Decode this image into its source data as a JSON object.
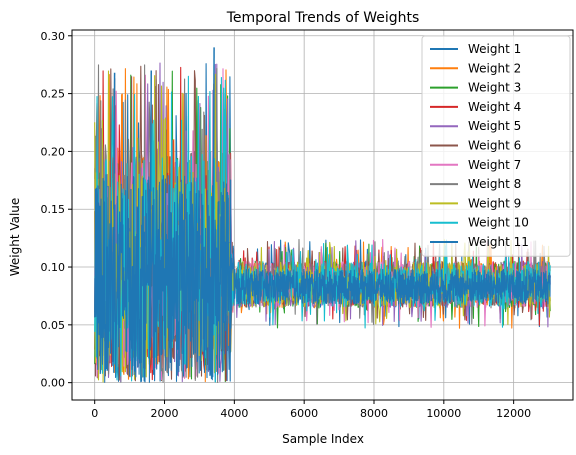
{
  "chart_data": {
    "type": "line",
    "title": "Temporal Trends of Weights",
    "xlabel": "Sample Index",
    "ylabel": "Weight Value",
    "xlim": [
      -650,
      13700
    ],
    "ylim": [
      -0.015,
      0.305
    ],
    "xticks": [
      0,
      2000,
      4000,
      6000,
      8000,
      10000,
      12000
    ],
    "xtick_labels": [
      "0",
      "2000",
      "4000",
      "6000",
      "8000",
      "10000",
      "12000"
    ],
    "yticks": [
      0.0,
      0.05,
      0.1,
      0.15,
      0.2,
      0.25,
      0.3
    ],
    "ytick_labels": [
      "0.00",
      "0.05",
      "0.10",
      "0.15",
      "0.20",
      "0.25",
      "0.30"
    ],
    "grid": true,
    "legend_position": "upper-right",
    "regimes": [
      {
        "x_start": 0,
        "x_end": 3900,
        "center": 0.09,
        "low": 0.0,
        "typical_high": 0.2,
        "peak": 0.29
      },
      {
        "x_start": 3900,
        "x_end": 4050,
        "transition": true
      },
      {
        "x_start": 4050,
        "x_end": 13050,
        "center": 0.083,
        "low": 0.047,
        "typical_high": 0.105,
        "peak": 0.124
      }
    ],
    "series": [
      {
        "name": "Weight 1",
        "color": "#1f77b4"
      },
      {
        "name": "Weight 2",
        "color": "#ff7f0e"
      },
      {
        "name": "Weight 3",
        "color": "#2ca02c"
      },
      {
        "name": "Weight 4",
        "color": "#d62728"
      },
      {
        "name": "Weight 5",
        "color": "#9467bd"
      },
      {
        "name": "Weight 6",
        "color": "#8c564b"
      },
      {
        "name": "Weight 7",
        "color": "#e377c2"
      },
      {
        "name": "Weight 8",
        "color": "#7f7f7f"
      },
      {
        "name": "Weight 9",
        "color": "#bcbd22"
      },
      {
        "name": "Weight 10",
        "color": "#17becf"
      },
      {
        "name": "Weight 11",
        "color": "#1f77b4"
      }
    ]
  }
}
